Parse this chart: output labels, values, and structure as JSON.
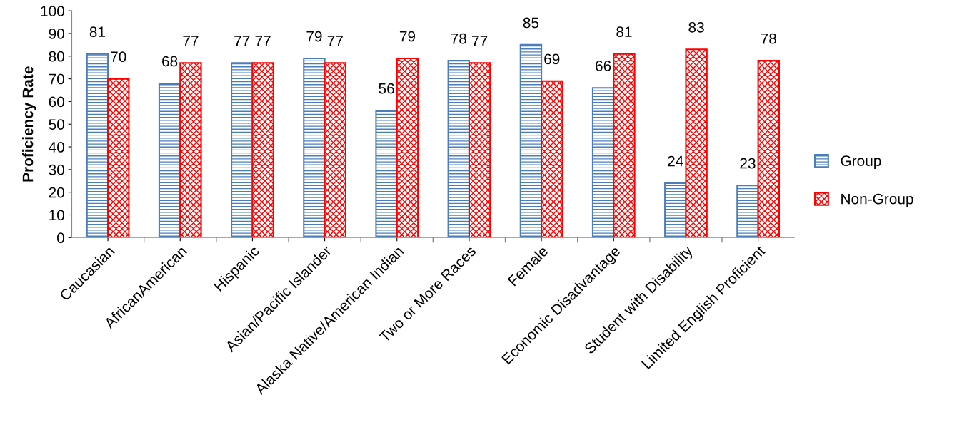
{
  "chart_data": {
    "type": "bar",
    "ylabel": "Proficiency Rate",
    "categories": [
      "Caucasian",
      "AfricanAmerican",
      "Hispanic",
      "Asian/Pacific Islander",
      "Alaska Native/American Indian",
      "Two or More Races",
      "Female",
      "Economic Disadvantage",
      "Student with Disability",
      "Limited English Proficient"
    ],
    "series": [
      {
        "name": "Group",
        "color": "#4a7ebb",
        "values": [
          81,
          68,
          77,
          79,
          56,
          78,
          85,
          66,
          24,
          23
        ]
      },
      {
        "name": "Non-Group",
        "color": "#ff0000",
        "values": [
          70,
          77,
          77,
          77,
          79,
          77,
          69,
          81,
          83,
          78
        ]
      }
    ],
    "ylim": [
      0,
      100
    ],
    "yticks": [
      0,
      10,
      20,
      30,
      40,
      50,
      60,
      70,
      80,
      90,
      100
    ],
    "data_labels": true,
    "legend": "right",
    "grid": false
  }
}
